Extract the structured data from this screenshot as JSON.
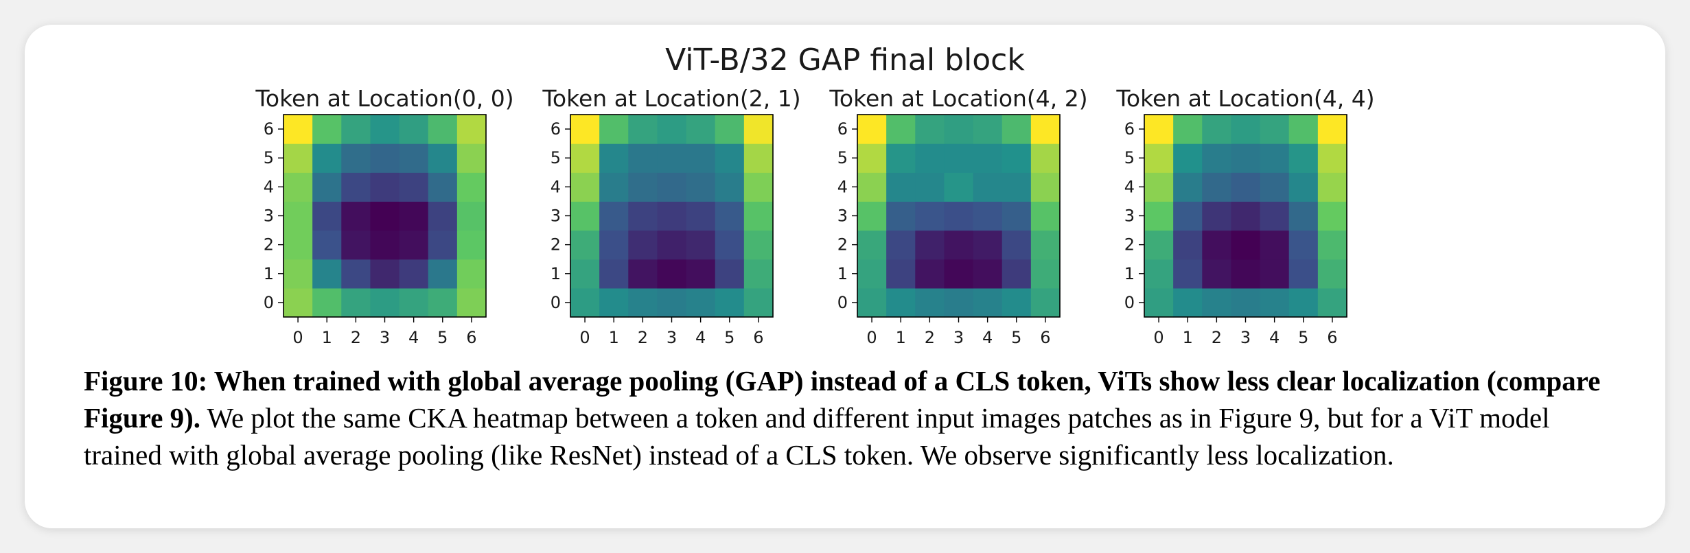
{
  "figure": {
    "suptitle": "ViT-B/32 GAP final block",
    "colormap": [
      "#440154",
      "#3b528b",
      "#21918c",
      "#5ec962",
      "#fde725"
    ],
    "caption": {
      "bold": "Figure 10: When trained with global average pooling (GAP) instead of a CLS token, ViTs show less clear localization (compare Figure 9).",
      "text": " We plot the same CKA heatmap between a token and different input images patches as in Figure 9, but for a ViT model trained with global average pooling (like ResNet) instead of a CLS token. We observe significantly less localization."
    }
  },
  "chart_data": [
    {
      "type": "heatmap",
      "title": "Token at Location(0, 0)",
      "x_ticks": [
        "0",
        "1",
        "2",
        "3",
        "4",
        "5",
        "6"
      ],
      "y_ticks": [
        "0",
        "1",
        "2",
        "3",
        "4",
        "5",
        "6"
      ],
      "rows_bottom_to_top": [
        [
          0.82,
          0.7,
          0.58,
          0.55,
          0.58,
          0.62,
          0.8
        ],
        [
          0.8,
          0.45,
          0.22,
          0.12,
          0.18,
          0.4,
          0.78
        ],
        [
          0.78,
          0.25,
          0.06,
          0.02,
          0.04,
          0.22,
          0.74
        ],
        [
          0.78,
          0.22,
          0.04,
          0.0,
          0.02,
          0.2,
          0.72
        ],
        [
          0.8,
          0.38,
          0.22,
          0.18,
          0.2,
          0.35,
          0.76
        ],
        [
          0.86,
          0.48,
          0.36,
          0.33,
          0.35,
          0.46,
          0.82
        ],
        [
          1.0,
          0.72,
          0.58,
          0.52,
          0.56,
          0.68,
          0.88
        ]
      ]
    },
    {
      "type": "heatmap",
      "title": "Token at Location(2, 1)",
      "x_ticks": [
        "0",
        "1",
        "2",
        "3",
        "4",
        "5",
        "6"
      ],
      "y_ticks": [
        "0",
        "1",
        "2",
        "3",
        "4",
        "5",
        "6"
      ],
      "rows_bottom_to_top": [
        [
          0.55,
          0.48,
          0.44,
          0.42,
          0.44,
          0.48,
          0.58
        ],
        [
          0.58,
          0.22,
          0.06,
          0.02,
          0.04,
          0.2,
          0.62
        ],
        [
          0.62,
          0.24,
          0.14,
          0.1,
          0.12,
          0.24,
          0.66
        ],
        [
          0.72,
          0.28,
          0.2,
          0.18,
          0.2,
          0.28,
          0.72
        ],
        [
          0.82,
          0.42,
          0.36,
          0.34,
          0.36,
          0.42,
          0.8
        ],
        [
          0.88,
          0.46,
          0.4,
          0.4,
          0.4,
          0.46,
          0.86
        ],
        [
          1.0,
          0.7,
          0.58,
          0.55,
          0.58,
          0.68,
          0.98
        ]
      ]
    },
    {
      "type": "heatmap",
      "title": "Token at Location(4, 2)",
      "x_ticks": [
        "0",
        "1",
        "2",
        "3",
        "4",
        "5",
        "6"
      ],
      "y_ticks": [
        "0",
        "1",
        "2",
        "3",
        "4",
        "5",
        "6"
      ],
      "rows_bottom_to_top": [
        [
          0.56,
          0.48,
          0.44,
          0.42,
          0.44,
          0.48,
          0.58
        ],
        [
          0.58,
          0.2,
          0.06,
          0.02,
          0.04,
          0.18,
          0.62
        ],
        [
          0.6,
          0.22,
          0.1,
          0.06,
          0.08,
          0.22,
          0.64
        ],
        [
          0.72,
          0.3,
          0.26,
          0.24,
          0.26,
          0.3,
          0.72
        ],
        [
          0.82,
          0.46,
          0.46,
          0.52,
          0.46,
          0.46,
          0.82
        ],
        [
          0.88,
          0.52,
          0.48,
          0.48,
          0.48,
          0.5,
          0.86
        ],
        [
          1.0,
          0.7,
          0.58,
          0.56,
          0.58,
          0.68,
          1.0
        ]
      ]
    },
    {
      "type": "heatmap",
      "title": "Token at Location(4, 4)",
      "x_ticks": [
        "0",
        "1",
        "2",
        "3",
        "4",
        "5",
        "6"
      ],
      "y_ticks": [
        "0",
        "1",
        "2",
        "3",
        "4",
        "5",
        "6"
      ],
      "rows_bottom_to_top": [
        [
          0.56,
          0.48,
          0.44,
          0.42,
          0.44,
          0.48,
          0.58
        ],
        [
          0.58,
          0.22,
          0.06,
          0.02,
          0.04,
          0.24,
          0.64
        ],
        [
          0.62,
          0.2,
          0.04,
          0.0,
          0.04,
          0.26,
          0.68
        ],
        [
          0.74,
          0.28,
          0.16,
          0.12,
          0.18,
          0.34,
          0.76
        ],
        [
          0.82,
          0.42,
          0.34,
          0.3,
          0.34,
          0.46,
          0.84
        ],
        [
          0.88,
          0.5,
          0.42,
          0.4,
          0.42,
          0.52,
          0.88
        ],
        [
          1.0,
          0.7,
          0.58,
          0.55,
          0.58,
          0.7,
          1.0
        ]
      ]
    }
  ]
}
